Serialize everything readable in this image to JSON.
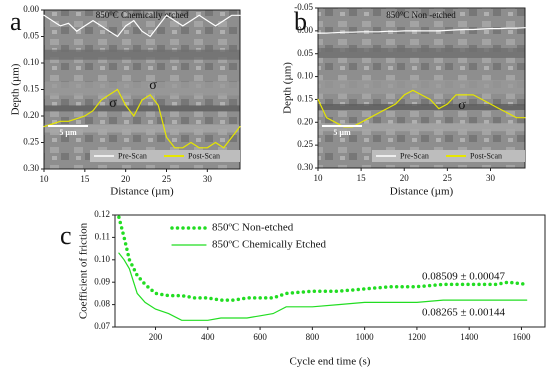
{
  "chart_data": [
    {
      "type": "line",
      "label": "a",
      "title": "850°C Chemically etched",
      "x_label": "Distance (µm)",
      "y_label": "Depth (µm)",
      "xlim": [
        10,
        34
      ],
      "ylim": [
        0,
        0.3
      ],
      "y_inverted": true,
      "xticks": [
        10,
        15,
        20,
        25,
        30
      ],
      "yticks": [
        {
          "value": 0,
          "label": "0.00"
        },
        0.05,
        {
          "value": 0.1,
          "label": "0.10"
        },
        0.15,
        {
          "value": 0.2,
          "label": "0.20"
        },
        0.25,
        {
          "value": 0.3,
          "label": "0.30"
        }
      ],
      "x": [
        10,
        11,
        12,
        13,
        14,
        15,
        16,
        17,
        18,
        19,
        20,
        21,
        22,
        23,
        24,
        25,
        26,
        27,
        28,
        29,
        30,
        31,
        32,
        33,
        34
      ],
      "series": [
        {
          "name": "Pre-Scan",
          "color": "#ffffff",
          "values": [
            0.01,
            0.02,
            0.03,
            0.025,
            0.04,
            0.03,
            0.02,
            0.03,
            0.04,
            0.05,
            0.03,
            0.02,
            0.04,
            0.05,
            0.03,
            0.01,
            0.02,
            0.03,
            0.02,
            0.01,
            0.02,
            0.03,
            0.02,
            0.01,
            0.01
          ]
        },
        {
          "name": "Post-Scan",
          "color": "#e6e600",
          "values": [
            0.22,
            0.215,
            0.21,
            0.21,
            0.205,
            0.2,
            0.19,
            0.17,
            0.16,
            0.15,
            0.18,
            0.2,
            0.17,
            0.16,
            0.18,
            0.24,
            0.26,
            0.26,
            0.25,
            0.26,
            0.26,
            0.25,
            0.26,
            0.24,
            0.22
          ]
        }
      ],
      "annotations": [
        "σ",
        "σ"
      ],
      "scale_bar": "5 µm"
    },
    {
      "type": "line",
      "label": "b",
      "title": "850°C Non -etched",
      "x_label": "Distance (µm)",
      "y_label": "Depth (µm)",
      "xlim": [
        10,
        34
      ],
      "ylim": [
        -0.05,
        0.3
      ],
      "y_inverted": true,
      "xticks": [
        10,
        15,
        20,
        25,
        30
      ],
      "yticks": [
        -0.05,
        {
          "value": 0,
          "label": "0.00"
        },
        0.05,
        {
          "value": 0.1,
          "label": "0.10"
        },
        0.15,
        {
          "value": 0.2,
          "label": "0.20"
        },
        0.25,
        {
          "value": 0.3,
          "label": "0.30"
        }
      ],
      "x": [
        10,
        11,
        12,
        13,
        14,
        15,
        16,
        17,
        18,
        19,
        20,
        21,
        22,
        23,
        24,
        25,
        26,
        27,
        28,
        29,
        30,
        31,
        32,
        33,
        34
      ],
      "series": [
        {
          "name": "Pre-Scan",
          "color": "#ffffff",
          "values": [
            0.005,
            0.005,
            0.004,
            0.003,
            0.003,
            0.002,
            0.002,
            0.002,
            0.001,
            0.001,
            0,
            0,
            0,
            0,
            0,
            -0.001,
            -0.002,
            -0.003,
            -0.003,
            -0.004,
            -0.005,
            -0.005,
            -0.006,
            -0.006,
            -0.007
          ]
        },
        {
          "name": "Post-Scan",
          "color": "#e6e600",
          "values": [
            0.15,
            0.19,
            0.2,
            0.21,
            0.21,
            0.2,
            0.19,
            0.18,
            0.17,
            0.16,
            0.14,
            0.13,
            0.14,
            0.15,
            0.17,
            0.16,
            0.14,
            0.14,
            0.14,
            0.15,
            0.16,
            0.17,
            0.18,
            0.19,
            0.19
          ]
        }
      ],
      "annotations": [
        "σ"
      ],
      "scale_bar": "5 µm"
    },
    {
      "type": "line",
      "label": "c",
      "x_label": "Cycle end time (s)",
      "y_label": "Coefficient of friction",
      "xlim": [
        45,
        1690
      ],
      "ylim": [
        0.07,
        0.12
      ],
      "xticks": [
        200,
        400,
        600,
        800,
        1000,
        1200,
        1400,
        1600
      ],
      "yticks": [
        0.07,
        0.08,
        0.09,
        {
          "value": 0.1,
          "label": "0.10"
        },
        0.11,
        0.12
      ],
      "x": [
        60,
        80,
        100,
        130,
        160,
        200,
        250,
        300,
        350,
        400,
        450,
        500,
        550,
        600,
        650,
        700,
        800,
        900,
        1000,
        1100,
        1200,
        1300,
        1400,
        1500,
        1550,
        1620
      ],
      "series": [
        {
          "name": "850ºC  Non-etched",
          "color": "#22dd22",
          "style": "dotted",
          "values": [
            0.119,
            0.11,
            0.1,
            0.093,
            0.089,
            0.085,
            0.084,
            0.084,
            0.083,
            0.083,
            0.082,
            0.082,
            0.083,
            0.083,
            0.083,
            0.085,
            0.086,
            0.086,
            0.087,
            0.088,
            0.088,
            0.089,
            0.089,
            0.089,
            0.09,
            0.089
          ]
        },
        {
          "name": "850ºC  Chemically Etched",
          "color": "#22dd22",
          "style": "solid",
          "values": [
            0.103,
            0.1,
            0.096,
            0.085,
            0.081,
            0.078,
            0.076,
            0.073,
            0.073,
            0.073,
            0.074,
            0.074,
            0.074,
            0.075,
            0.076,
            0.079,
            0.079,
            0.08,
            0.081,
            0.081,
            0.081,
            0.082,
            0.082,
            0.082,
            0.082,
            0.082
          ]
        }
      ],
      "annotations": [
        "0.08509 ± 0.00047",
        "0.08265 ± 0.00144"
      ]
    }
  ]
}
